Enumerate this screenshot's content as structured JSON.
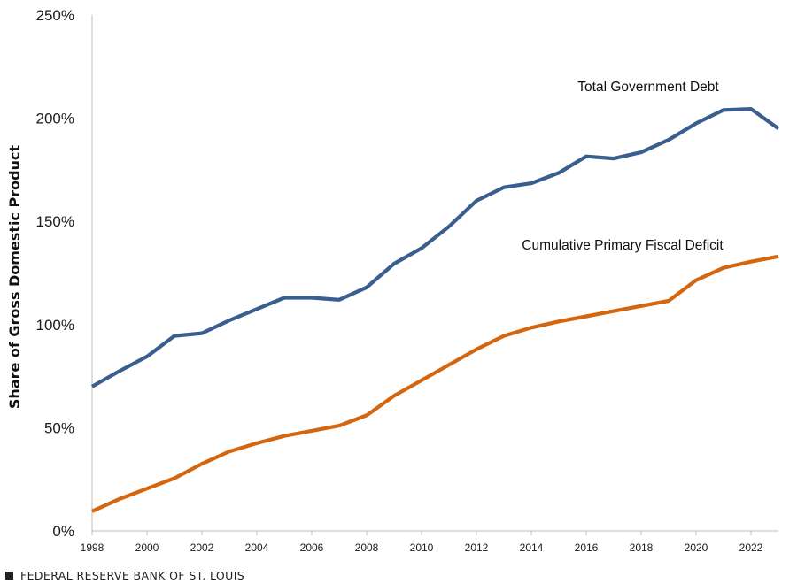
{
  "chart_data": {
    "type": "line",
    "title": "",
    "xlabel": "",
    "ylabel": "Share of Gross Domestic Product",
    "x": [
      1998,
      1999,
      2000,
      2001,
      2002,
      2003,
      2004,
      2005,
      2006,
      2007,
      2008,
      2009,
      2010,
      2011,
      2012,
      2013,
      2014,
      2015,
      2016,
      2017,
      2018,
      2019,
      2020,
      2021,
      2022,
      2023
    ],
    "xticks": [
      "1998",
      "2000",
      "2002",
      "2004",
      "2006",
      "2008",
      "2010",
      "2012",
      "2014",
      "2016",
      "2018",
      "2020",
      "2022"
    ],
    "xlim": [
      1998,
      2023
    ],
    "ylim": [
      0,
      250
    ],
    "yticks": [
      0,
      50,
      100,
      150,
      200,
      250
    ],
    "ytick_labels": [
      "0%",
      "50%",
      "100%",
      "150%",
      "200%",
      "250%"
    ],
    "grid": false,
    "series": [
      {
        "name": "Total Government Debt",
        "color": "#3a5f8f",
        "values": [
          70,
          77.5,
          84.5,
          94.5,
          95.8,
          102,
          107.5,
          113,
          113,
          112,
          118,
          129.5,
          137,
          147.5,
          160,
          166.5,
          168.5,
          173.5,
          181.5,
          180.5,
          183.5,
          189.5,
          197.5,
          204,
          204.5,
          195
        ]
      },
      {
        "name": "Cumulative Primary Fiscal Deficit",
        "color": "#d4660f",
        "values": [
          9.5,
          15.5,
          20.5,
          25.5,
          32.5,
          38.5,
          42.5,
          46,
          48.5,
          51,
          56,
          65.5,
          73,
          80.5,
          88,
          94.5,
          98.5,
          101.5,
          104,
          106.5,
          109,
          111.5,
          121.5,
          127.5,
          130.5,
          133
        ]
      }
    ]
  },
  "footer": {
    "source": "FEDERAL RESERVE BANK OF ST. LOUIS"
  }
}
